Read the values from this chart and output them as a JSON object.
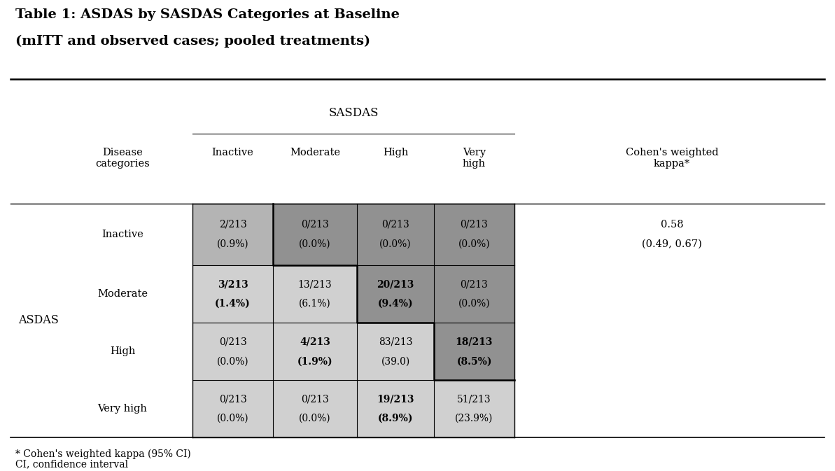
{
  "title_line1": "Table 1: ASDAS by SASDAS Categories at Baseline",
  "title_line2": "(mITT and observed cases; pooled treatments)",
  "sasdas_header": "SASDAS",
  "row_label_main": "ASDAS",
  "col_header_disease": "Disease\ncategories",
  "col_headers_sasdas": [
    "Inactive",
    "Moderate",
    "High",
    "Very\nhigh"
  ],
  "col_header_kappa": "Cohen's weighted\nkappa*",
  "row_labels": [
    "Inactive",
    "Moderate",
    "High",
    "Very high"
  ],
  "cell_data": [
    [
      "2/213",
      "(0.9%)",
      "0/213",
      "(0.0%)",
      "0/213",
      "(0.0%)",
      "0/213",
      "(0.0%)"
    ],
    [
      "3/213",
      "(1.4%)",
      "13/213",
      "(6.1%)",
      "20/213",
      "(9.4%)",
      "0/213",
      "(0.0%)"
    ],
    [
      "0/213",
      "(0.0%)",
      "4/213",
      "(1.9%)",
      "83/213",
      "(39.0)",
      "18/213",
      "(8.5%)"
    ],
    [
      "0/213",
      "(0.0%)",
      "0/213",
      "(0.0%)",
      "19/213",
      "(8.9%)",
      "51/213",
      "(23.9%)"
    ]
  ],
  "cell_bold": [
    [
      false,
      false,
      false,
      false
    ],
    [
      true,
      false,
      true,
      false
    ],
    [
      false,
      true,
      false,
      true
    ],
    [
      false,
      false,
      true,
      false
    ]
  ],
  "cohen_kappa_line1": "0.58",
  "cohen_kappa_line2": "(0.49, 0.67)",
  "footnote1": "* Cohen's weighted kappa (95% CI)",
  "footnote2": "CI, confidence interval",
  "bg_color": "#ffffff",
  "color_light": "#d0d0d0",
  "color_mid": "#b4b4b4",
  "color_dark": "#919191",
  "cell_color_keys": [
    [
      "M",
      "D",
      "D",
      "D"
    ],
    [
      "L",
      "L",
      "D",
      "D"
    ],
    [
      "L",
      "L",
      "L",
      "D"
    ],
    [
      "L",
      "L",
      "L",
      "L"
    ]
  ]
}
